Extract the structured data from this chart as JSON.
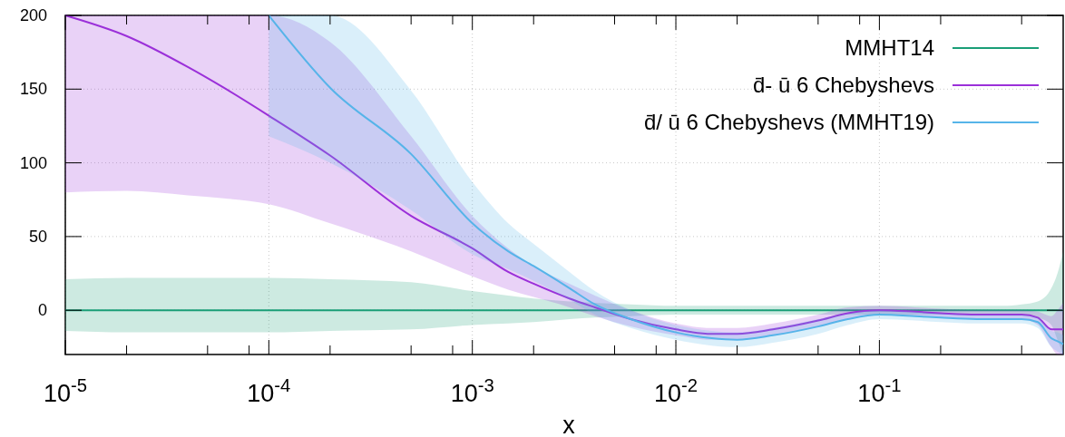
{
  "chart_data": {
    "type": "line",
    "xlabel": "x",
    "log": "x",
    "xlim": [
      1e-05,
      0.8
    ],
    "ylim": [
      -30,
      200
    ],
    "xticks": [
      {
        "value": 1e-05,
        "label": "10$^{-5}$"
      },
      {
        "value": 2e-05,
        "label": null
      },
      {
        "value": 5e-05,
        "label": null
      },
      {
        "value": 8e-05,
        "label": null
      },
      {
        "value": 0.0001,
        "label": "10$^{-4}$"
      },
      {
        "value": 0.0002,
        "label": null
      },
      {
        "value": 0.0005,
        "label": null
      },
      {
        "value": 0.0008,
        "label": null
      },
      {
        "value": 0.001,
        "label": "10$^{-3}$"
      },
      {
        "value": 0.002,
        "label": null
      },
      {
        "value": 0.005,
        "label": null
      },
      {
        "value": 0.008,
        "label": null
      },
      {
        "value": 0.01,
        "label": "10$^{-2}$"
      },
      {
        "value": 0.02,
        "label": null
      },
      {
        "value": 0.05,
        "label": null
      },
      {
        "value": 0.08,
        "label": null
      },
      {
        "value": 0.1,
        "label": "10$^{-1}$"
      },
      {
        "value": 0.2,
        "label": null
      },
      {
        "value": 0.5,
        "label": null
      }
    ],
    "yticks": [
      0,
      50,
      100,
      150,
      200
    ],
    "grid": true,
    "legend": "top right",
    "marker": "none",
    "line_style": "solid",
    "series": [
      {
        "name": "MMHT14",
        "color": "#1a9e77",
        "x": [
          1e-05,
          2e-05,
          4e-05,
          6e-05,
          0.0001,
          0.0002,
          0.0005,
          0.001,
          0.0015,
          0.002,
          0.003,
          0.004,
          0.006,
          0.01,
          0.015,
          0.02,
          0.03,
          0.05,
          0.07,
          0.1,
          0.15,
          0.2,
          0.3,
          0.4,
          0.5,
          0.6,
          0.7,
          0.75,
          0.8
        ],
        "values": [
          0,
          0,
          0,
          0,
          0,
          0,
          0,
          0,
          0,
          0,
          0,
          0,
          0,
          0,
          0,
          0,
          0,
          0,
          0,
          0,
          0,
          0,
          0,
          0,
          0,
          0,
          0,
          0,
          0
        ],
        "upper": [
          21,
          22,
          22,
          22,
          22,
          21,
          19,
          13,
          10,
          8,
          6,
          5,
          4,
          3,
          3,
          3,
          3,
          3,
          3,
          3,
          3,
          3,
          3,
          3,
          4,
          6,
          15,
          25,
          40
        ],
        "lower": [
          -14,
          -15,
          -15,
          -15,
          -15,
          -14,
          -13,
          -10,
          -9,
          -8,
          -6,
          -5,
          -4,
          -3,
          -3,
          -3,
          -3,
          -3,
          -3,
          -3,
          -3,
          -3,
          -3,
          -3,
          -3,
          -5,
          -10,
          -20,
          -30
        ]
      },
      {
        "name": "d̄- ū 6 Chebyshevs",
        "color": "#9b30d9",
        "x": [
          1e-05,
          2e-05,
          4e-05,
          6e-05,
          0.0001,
          0.0002,
          0.0005,
          0.001,
          0.0015,
          0.002,
          0.003,
          0.004,
          0.006,
          0.01,
          0.015,
          0.02,
          0.03,
          0.05,
          0.07,
          0.1,
          0.15,
          0.2,
          0.3,
          0.4,
          0.5,
          0.6,
          0.7,
          0.75,
          0.8
        ],
        "values": [
          200,
          186,
          165,
          151,
          132,
          105,
          64,
          42,
          26,
          18,
          8,
          2,
          -6,
          -13,
          -16,
          -16,
          -13,
          -7,
          -2,
          0,
          -1,
          -2,
          -3,
          -3,
          -3,
          -5,
          -13,
          -13,
          -13
        ],
        "upper": [
          200,
          200,
          200,
          200,
          200,
          182,
          118,
          64,
          42,
          30,
          18,
          10,
          0,
          -9,
          -12,
          -12,
          -9,
          -3,
          2,
          3,
          2,
          1,
          0,
          0,
          0,
          -1,
          -4,
          0,
          5
        ],
        "lower": [
          80,
          81,
          78,
          76,
          72,
          59,
          40,
          23,
          14,
          9,
          2,
          -4,
          -11,
          -17,
          -20,
          -20,
          -17,
          -11,
          -6,
          -3,
          -4,
          -5,
          -6,
          -6,
          -6,
          -10,
          -25,
          -30,
          -30
        ]
      },
      {
        "name": "d̄/ ū 6 Chebyshevs (MMHT19)",
        "color": "#56b4e9",
        "x": [
          0.0001,
          0.0002,
          0.0005,
          0.001,
          0.0015,
          0.002,
          0.003,
          0.004,
          0.006,
          0.01,
          0.015,
          0.02,
          0.03,
          0.05,
          0.07,
          0.1,
          0.15,
          0.2,
          0.3,
          0.4,
          0.5,
          0.6,
          0.7,
          0.75,
          0.8
        ],
        "values": [
          200,
          151,
          106,
          59,
          40,
          30,
          15,
          4,
          -6,
          -15,
          -19,
          -20,
          -17,
          -11,
          -6,
          -3,
          -4,
          -5,
          -6,
          -6,
          -6,
          -8,
          -19,
          -21,
          -23
        ],
        "upper": [
          200,
          200,
          149,
          87,
          59,
          45,
          26,
          13,
          0,
          -10,
          -14,
          -15,
          -12,
          -6,
          -2,
          0,
          -1,
          -2,
          -3,
          -3,
          -3,
          -5,
          -14,
          -15,
          -17
        ],
        "lower": [
          118,
          100,
          68,
          38,
          28,
          20,
          7,
          -3,
          -12,
          -20,
          -24,
          -25,
          -22,
          -16,
          -10,
          -6,
          -7,
          -8,
          -9,
          -9,
          -9,
          -12,
          -25,
          -28,
          -30
        ]
      }
    ]
  }
}
